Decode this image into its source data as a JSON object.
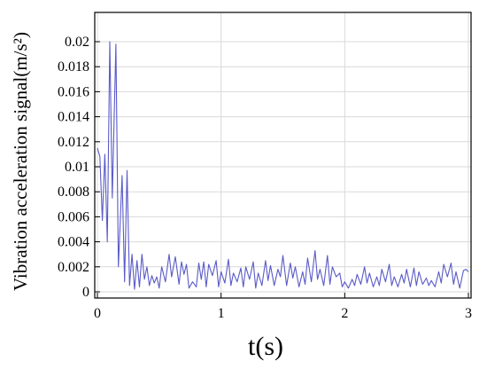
{
  "chart_data": {
    "type": "line",
    "xlabel": "t(s)",
    "ylabel": "Vibration acceleration signal(m/s²)",
    "xlim": [
      0,
      3
    ],
    "ylim": [
      0,
      0.02
    ],
    "grid": true,
    "x_ticks": [
      "0",
      "1",
      "2",
      "3"
    ],
    "y_ticks": [
      "0",
      "0.002",
      "0.004",
      "0.006",
      "0.008",
      "0.01",
      "0.012",
      "0.014",
      "0.016",
      "0.018",
      "0.02"
    ],
    "series": [
      {
        "color": "#5a5ac8",
        "x": [
          0.0,
          0.02,
          0.04,
          0.06,
          0.08,
          0.1,
          0.12,
          0.15,
          0.17,
          0.2,
          0.22,
          0.24,
          0.26,
          0.28,
          0.3,
          0.32,
          0.34,
          0.36,
          0.38,
          0.4,
          0.42,
          0.44,
          0.46,
          0.48,
          0.5,
          0.52,
          0.55,
          0.58,
          0.6,
          0.63,
          0.66,
          0.68,
          0.7,
          0.72,
          0.74,
          0.77,
          0.8,
          0.82,
          0.84,
          0.86,
          0.88,
          0.9,
          0.93,
          0.96,
          0.98,
          1.0,
          1.03,
          1.06,
          1.08,
          1.1,
          1.13,
          1.16,
          1.18,
          1.2,
          1.23,
          1.26,
          1.28,
          1.3,
          1.33,
          1.36,
          1.38,
          1.4,
          1.43,
          1.46,
          1.48,
          1.5,
          1.53,
          1.56,
          1.58,
          1.6,
          1.63,
          1.66,
          1.68,
          1.7,
          1.73,
          1.76,
          1.78,
          1.8,
          1.83,
          1.86,
          1.88,
          1.9,
          1.93,
          1.96,
          1.98,
          2.0,
          2.03,
          2.06,
          2.08,
          2.1,
          2.13,
          2.16,
          2.18,
          2.2,
          2.23,
          2.26,
          2.28,
          2.3,
          2.33,
          2.36,
          2.38,
          2.4,
          2.43,
          2.46,
          2.48,
          2.5,
          2.53,
          2.56,
          2.58,
          2.6,
          2.63,
          2.66,
          2.68,
          2.7,
          2.73,
          2.76,
          2.78,
          2.8,
          2.83,
          2.86,
          2.88,
          2.9,
          2.93,
          2.96,
          2.98,
          3.0
        ],
        "y": [
          0.0115,
          0.0108,
          0.0057,
          0.011,
          0.004,
          0.02,
          0.0075,
          0.0198,
          0.002,
          0.0093,
          0.0008,
          0.0097,
          0.0005,
          0.003,
          0.0002,
          0.0025,
          0.0004,
          0.003,
          0.001,
          0.002,
          0.0005,
          0.0013,
          0.0007,
          0.0012,
          0.0003,
          0.002,
          0.0008,
          0.003,
          0.0012,
          0.0028,
          0.0006,
          0.0024,
          0.0014,
          0.0022,
          0.0003,
          0.0008,
          0.0004,
          0.0023,
          0.001,
          0.0024,
          0.0004,
          0.0022,
          0.0013,
          0.0025,
          0.0004,
          0.0016,
          0.0007,
          0.0026,
          0.0005,
          0.0015,
          0.0008,
          0.0019,
          0.0004,
          0.002,
          0.001,
          0.0024,
          0.0003,
          0.0015,
          0.0005,
          0.0025,
          0.0009,
          0.0021,
          0.0005,
          0.0018,
          0.0012,
          0.0029,
          0.0005,
          0.0023,
          0.0011,
          0.002,
          0.0004,
          0.0016,
          0.0006,
          0.0027,
          0.0008,
          0.0033,
          0.001,
          0.0018,
          0.0005,
          0.0029,
          0.0006,
          0.002,
          0.0012,
          0.0015,
          0.0004,
          0.0008,
          0.0003,
          0.001,
          0.0005,
          0.0014,
          0.0006,
          0.002,
          0.0007,
          0.0015,
          0.0004,
          0.0012,
          0.0005,
          0.0018,
          0.0008,
          0.0022,
          0.0005,
          0.0012,
          0.0004,
          0.0014,
          0.0007,
          0.0018,
          0.0004,
          0.0019,
          0.0005,
          0.0016,
          0.0006,
          0.0011,
          0.0005,
          0.0009,
          0.0004,
          0.0016,
          0.0007,
          0.0022,
          0.0012,
          0.0023,
          0.0006,
          0.0016,
          0.0003,
          0.0017,
          0.0018,
          0.0016
        ]
      }
    ]
  }
}
